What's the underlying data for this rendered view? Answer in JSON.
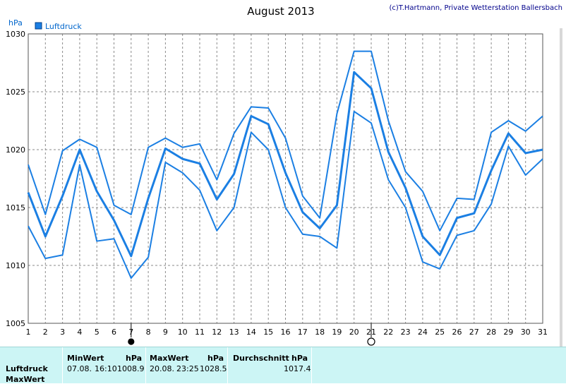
{
  "chart_data": {
    "type": "line",
    "title": "August 2013",
    "credit": "(c)T.Hartmann, Private Wetterstation Ballersbach",
    "ylabel": "hPa",
    "legend": {
      "label": "Luftdruck",
      "position": "top-left"
    },
    "ylim": [
      1005,
      1030
    ],
    "yticks": [
      1005,
      1010,
      1015,
      1020,
      1025,
      1030
    ],
    "x": [
      1,
      2,
      3,
      4,
      5,
      6,
      7,
      8,
      9,
      10,
      11,
      12,
      13,
      14,
      15,
      16,
      17,
      18,
      19,
      20,
      21,
      22,
      23,
      24,
      25,
      26,
      27,
      28,
      29,
      30,
      31
    ],
    "grid": true,
    "markers": [
      {
        "x": 7,
        "symbol": "new-moon"
      },
      {
        "x": 21,
        "symbol": "full-moon"
      }
    ],
    "color": "#1b7fe3",
    "series": [
      {
        "values": [
          1018.7,
          1014.4,
          1019.9,
          1020.9,
          1020.2,
          1015.2,
          1014.4,
          1020.2,
          1021.0,
          1020.2,
          1020.5,
          1017.4,
          1021.4,
          1023.7,
          1023.6,
          1021.0,
          1016.0,
          1014.1,
          1023.1,
          1028.5,
          1028.5,
          1022.5,
          1018.1,
          1016.4,
          1013.0,
          1015.8,
          1015.7,
          1021.5,
          1022.5,
          1021.6,
          1022.9
        ]
      },
      {
        "values": [
          1016.3,
          1012.5,
          1016.0,
          1020.0,
          1016.4,
          1013.9,
          1010.8,
          1015.8,
          1020.1,
          1019.2,
          1018.8,
          1015.7,
          1017.9,
          1022.9,
          1022.2,
          1018.0,
          1014.6,
          1013.2,
          1015.2,
          1026.7,
          1025.3,
          1019.8,
          1016.7,
          1012.5,
          1010.9,
          1014.1,
          1014.5,
          1018.2,
          1021.4,
          1019.7,
          1020.0
        ]
      },
      {
        "values": [
          1013.4,
          1010.6,
          1010.9,
          1018.7,
          1012.1,
          1012.3,
          1008.9,
          1010.7,
          1018.9,
          1018.0,
          1016.5,
          1013.0,
          1015.0,
          1021.5,
          1020.0,
          1015.0,
          1012.7,
          1012.5,
          1011.5,
          1023.3,
          1022.3,
          1017.4,
          1015.0,
          1010.3,
          1009.7,
          1012.6,
          1013.0,
          1015.3,
          1020.3,
          1017.8,
          1019.2
        ]
      }
    ]
  },
  "summary": {
    "row_label_1": "Luftdruck",
    "row_label_2": "MaxWert",
    "min": {
      "header": "MinWert",
      "unit": "hPa",
      "date": "07.08.",
      "time": "16:10",
      "value": "1008.9"
    },
    "max": {
      "header": "MaxWert",
      "unit": "hPa",
      "date": "20.08.",
      "time": "23:25",
      "value": "1028.5"
    },
    "avg": {
      "header": "Durchschnitt",
      "unit": "hPa",
      "value": "1017.4"
    }
  }
}
